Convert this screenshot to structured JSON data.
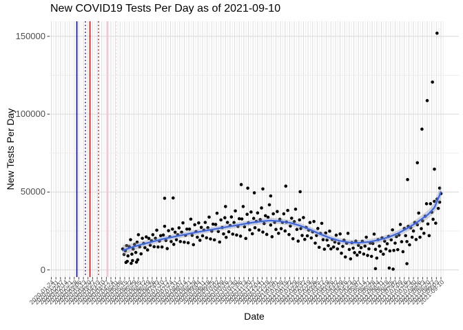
{
  "chart_data": {
    "type": "scatter",
    "title": "New COVID19 Tests Per Day as of 2021-09-10",
    "xlabel": "Date",
    "ylabel": "New Tests Per Day",
    "grid": true,
    "legend": false,
    "y_unit": 1000,
    "ylim": [
      -4500,
      161000
    ],
    "y_ticks": [
      0,
      50000,
      100000,
      150000
    ],
    "y_tick_labels": [
      "0",
      "50000",
      "100000",
      "150000"
    ],
    "y_minor_ticks": [
      25000,
      75000,
      125000
    ],
    "x_day_range": [
      0,
      595
    ],
    "x_tick_step_days": 7,
    "x_tick_angle": 45,
    "x_tick_labels": [
      "2020-01-24",
      "2020-01-31",
      "2020-02-07",
      "2020-02-14",
      "2020-02-21",
      "2020-02-28",
      "2020-03-06",
      "2020-03-13",
      "2020-03-20",
      "2020-03-27",
      "2020-04-03",
      "2020-04-10",
      "2020-04-17",
      "2020-04-24",
      "2020-05-01",
      "2020-05-08",
      "2020-05-15",
      "2020-05-22",
      "2020-05-29",
      "2020-06-05",
      "2020-06-12",
      "2020-06-19",
      "2020-06-26",
      "2020-07-03",
      "2020-07-10",
      "2020-07-17",
      "2020-07-24",
      "2020-07-31",
      "2020-08-07",
      "2020-08-14",
      "2020-08-21",
      "2020-08-28",
      "2020-09-04",
      "2020-09-11",
      "2020-09-18",
      "2020-09-25",
      "2020-10-02",
      "2020-10-09",
      "2020-10-16",
      "2020-10-23",
      "2020-10-30",
      "2020-11-06",
      "2020-11-13",
      "2020-11-20",
      "2020-11-27",
      "2020-12-04",
      "2020-12-11",
      "2020-12-18",
      "2020-12-25",
      "2021-01-01",
      "2021-01-08",
      "2021-01-15",
      "2021-01-22",
      "2021-01-29",
      "2021-02-05",
      "2021-02-12",
      "2021-02-19",
      "2021-02-26",
      "2021-03-05",
      "2021-03-12",
      "2021-03-19",
      "2021-03-26",
      "2021-04-02",
      "2021-04-09",
      "2021-04-16",
      "2021-04-23",
      "2021-04-30",
      "2021-05-07",
      "2021-05-14",
      "2021-05-21",
      "2021-05-28",
      "2021-06-04",
      "2021-06-11",
      "2021-06-18",
      "2021-06-25",
      "2021-07-02",
      "2021-07-09",
      "2021-07-16",
      "2021-07-23",
      "2021-07-30",
      "2021-08-06",
      "2021-08-13",
      "2021-08-20",
      "2021-08-27",
      "2021-09-03",
      "2021-09-10"
    ],
    "colors": {
      "point": "#000000",
      "smooth": "#3366FF",
      "ribbon": "rgba(153,153,153,0.4)",
      "grid_major": "#DCDCDC",
      "grid_minor": "#EDEDED",
      "axis_text": "#4D4D4D",
      "tick_mark": "#333333"
    },
    "vlines": [
      {
        "day": 39,
        "color": "#0000C8",
        "style": "solid"
      },
      {
        "day": 52,
        "color": "#2020E0",
        "style": "dotted"
      },
      {
        "day": 59,
        "color": "#E00000",
        "style": "solid"
      },
      {
        "day": 72,
        "color": "#B22222",
        "style": "dotted"
      },
      {
        "day": 86,
        "color": "#FFB3C1",
        "style": "solid"
      },
      {
        "day": 99,
        "color": "#FFD0DA",
        "style": "dotted"
      }
    ],
    "smooth": [
      [
        109,
        12.5,
        3.4
      ],
      [
        125,
        14.8,
        2.4
      ],
      [
        140,
        16.6,
        2.0
      ],
      [
        155,
        18.2,
        1.8
      ],
      [
        170,
        19.8,
        1.7
      ],
      [
        185,
        21.1,
        1.7
      ],
      [
        200,
        22.4,
        1.7
      ],
      [
        215,
        23.6,
        1.7
      ],
      [
        230,
        24.8,
        1.7
      ],
      [
        245,
        25.9,
        1.7
      ],
      [
        260,
        27.0,
        1.7
      ],
      [
        275,
        28.1,
        1.7
      ],
      [
        290,
        29.2,
        1.8
      ],
      [
        305,
        30.3,
        1.8
      ],
      [
        320,
        31.1,
        1.8
      ],
      [
        335,
        31.7,
        1.8
      ],
      [
        350,
        31.2,
        1.8
      ],
      [
        365,
        30.2,
        1.8
      ],
      [
        380,
        28.4,
        1.8
      ],
      [
        395,
        25.9,
        1.8
      ],
      [
        410,
        23.1,
        1.8
      ],
      [
        425,
        20.6,
        1.8
      ],
      [
        440,
        18.7,
        1.8
      ],
      [
        455,
        17.6,
        1.8
      ],
      [
        470,
        17.4,
        1.8
      ],
      [
        485,
        18.0,
        1.8
      ],
      [
        500,
        19.2,
        1.8
      ],
      [
        515,
        21.0,
        1.9
      ],
      [
        530,
        23.6,
        2.0
      ],
      [
        545,
        27.0,
        2.1
      ],
      [
        560,
        31.0,
        2.3
      ],
      [
        575,
        35.5,
        2.7
      ],
      [
        585,
        40.0,
        3.3
      ],
      [
        595,
        50.0,
        4.8
      ]
    ],
    "points": [
      [
        109,
        13.5
      ],
      [
        111,
        9.9
      ],
      [
        113,
        12.3
      ],
      [
        115,
        15.6
      ],
      [
        117,
        9.0
      ],
      [
        119,
        14.9
      ],
      [
        121,
        19.4
      ],
      [
        123,
        10.1
      ],
      [
        125,
        13.4
      ],
      [
        127,
        16.4
      ],
      [
        129,
        11.2
      ],
      [
        131,
        17.8
      ],
      [
        133,
        22.6
      ],
      [
        135,
        14.8
      ],
      [
        137,
        10.3
      ],
      [
        139,
        20.3
      ],
      [
        141,
        17.0
      ],
      [
        143,
        14.3
      ],
      [
        145,
        21.2
      ],
      [
        147,
        12.8
      ],
      [
        114,
        4.8
      ],
      [
        116,
        5.5
      ],
      [
        122,
        4.2
      ],
      [
        124,
        6.0
      ],
      [
        130,
        5.0
      ],
      [
        132,
        6.5
      ],
      [
        149,
        20.2
      ],
      [
        151,
        15.9
      ],
      [
        153,
        18.8
      ],
      [
        155,
        22.6
      ],
      [
        157,
        14.9
      ],
      [
        159,
        20.3
      ],
      [
        161,
        25.5
      ],
      [
        163,
        14.7
      ],
      [
        165,
        18.5
      ],
      [
        167,
        22.0
      ],
      [
        169,
        14.7
      ],
      [
        171,
        22.4
      ],
      [
        173,
        28.0
      ],
      [
        175,
        18.9
      ],
      [
        177,
        13.7
      ],
      [
        179,
        25.2
      ],
      [
        181,
        21.3
      ],
      [
        183,
        18.2
      ],
      [
        185,
        26.2
      ],
      [
        187,
        16.4
      ],
      [
        173,
        46.0
      ],
      [
        186,
        46.2
      ],
      [
        189,
        24.2
      ],
      [
        191,
        19.4
      ],
      [
        193,
        22.6
      ],
      [
        195,
        27.0
      ],
      [
        197,
        18.2
      ],
      [
        199,
        24.2
      ],
      [
        201,
        30.2
      ],
      [
        203,
        17.8
      ],
      [
        205,
        22.2
      ],
      [
        207,
        26.2
      ],
      [
        209,
        17.4
      ],
      [
        211,
        26.2
      ],
      [
        213,
        32.6
      ],
      [
        215,
        22.2
      ],
      [
        217,
        16.2
      ],
      [
        219,
        29.0
      ],
      [
        221,
        24.6
      ],
      [
        223,
        21.0
      ],
      [
        225,
        30.2
      ],
      [
        227,
        19.0
      ],
      [
        229,
        27.3
      ],
      [
        231,
        21.9
      ],
      [
        233,
        25.5
      ],
      [
        235,
        30.5
      ],
      [
        237,
        20.6
      ],
      [
        239,
        27.1
      ],
      [
        241,
        33.9
      ],
      [
        243,
        19.9
      ],
      [
        245,
        24.9
      ],
      [
        247,
        29.4
      ],
      [
        249,
        19.3
      ],
      [
        251,
        29.2
      ],
      [
        253,
        36.4
      ],
      [
        255,
        24.7
      ],
      [
        257,
        17.9
      ],
      [
        259,
        32.1
      ],
      [
        261,
        27.2
      ],
      [
        263,
        23.1
      ],
      [
        265,
        33.5
      ],
      [
        267,
        20.9
      ],
      [
        266,
        40.7
      ],
      [
        269,
        30.5
      ],
      [
        271,
        24.5
      ],
      [
        273,
        28.5
      ],
      [
        275,
        34.0
      ],
      [
        277,
        23.0
      ],
      [
        279,
        30.4
      ],
      [
        281,
        37.9
      ],
      [
        283,
        22.4
      ],
      [
        285,
        27.9
      ],
      [
        287,
        32.9
      ],
      [
        289,
        21.7
      ],
      [
        291,
        32.7
      ],
      [
        293,
        40.7
      ],
      [
        295,
        27.7
      ],
      [
        297,
        20.2
      ],
      [
        299,
        35.7
      ],
      [
        301,
        30.2
      ],
      [
        303,
        25.7
      ],
      [
        305,
        37.2
      ],
      [
        307,
        23.2
      ],
      [
        290,
        54.8
      ],
      [
        300,
        52.5
      ],
      [
        309,
        33.1
      ],
      [
        311,
        27.1
      ],
      [
        313,
        31.1
      ],
      [
        315,
        36.6
      ],
      [
        317,
        25.6
      ],
      [
        319,
        32.3
      ],
      [
        321,
        39.8
      ],
      [
        323,
        24.3
      ],
      [
        325,
        29.8
      ],
      [
        327,
        34.8
      ],
      [
        329,
        22.8
      ],
      [
        331,
        33.8
      ],
      [
        333,
        41.8
      ],
      [
        335,
        28.8
      ],
      [
        337,
        21.3
      ],
      [
        339,
        36.0
      ],
      [
        341,
        30.5
      ],
      [
        343,
        26.0
      ],
      [
        345,
        37.5
      ],
      [
        347,
        23.5
      ],
      [
        310,
        49.5
      ],
      [
        323,
        52.0
      ],
      [
        335,
        47.5
      ],
      [
        349,
        32.5
      ],
      [
        351,
        26.5
      ],
      [
        353,
        30.5
      ],
      [
        355,
        36.0
      ],
      [
        357,
        25.0
      ],
      [
        359,
        30.7
      ],
      [
        361,
        38.2
      ],
      [
        363,
        22.7
      ],
      [
        365,
        28.2
      ],
      [
        367,
        33.2
      ],
      [
        369,
        20.0
      ],
      [
        371,
        31.0
      ],
      [
        373,
        39.0
      ],
      [
        375,
        26.0
      ],
      [
        377,
        18.5
      ],
      [
        379,
        32.1
      ],
      [
        381,
        26.6
      ],
      [
        383,
        22.1
      ],
      [
        385,
        33.6
      ],
      [
        387,
        19.6
      ],
      [
        358,
        53.8
      ],
      [
        380,
        50.2
      ],
      [
        389,
        27.3
      ],
      [
        391,
        21.9
      ],
      [
        393,
        25.5
      ],
      [
        395,
        30.4
      ],
      [
        397,
        20.5
      ],
      [
        399,
        24.4
      ],
      [
        401,
        31.1
      ],
      [
        403,
        17.2
      ],
      [
        405,
        22.1
      ],
      [
        407,
        26.6
      ],
      [
        409,
        14.5
      ],
      [
        411,
        23.4
      ],
      [
        413,
        29.9
      ],
      [
        415,
        19.4
      ],
      [
        417,
        13.3
      ],
      [
        419,
        23.7
      ],
      [
        421,
        19.2
      ],
      [
        423,
        15.6
      ],
      [
        425,
        24.9
      ],
      [
        427,
        13.5
      ],
      [
        429,
        19.5
      ],
      [
        431,
        14.7
      ],
      [
        433,
        17.9
      ],
      [
        435,
        22.3
      ],
      [
        437,
        13.5
      ],
      [
        439,
        17.1
      ],
      [
        441,
        23.1
      ],
      [
        443,
        10.7
      ],
      [
        445,
        15.1
      ],
      [
        447,
        19.1
      ],
      [
        449,
        8.3
      ],
      [
        451,
        17.1
      ],
      [
        453,
        23.5
      ],
      [
        455,
        13.1
      ],
      [
        457,
        7.1
      ],
      [
        459,
        17.5
      ],
      [
        461,
        14.0
      ],
      [
        463,
        11.1
      ],
      [
        465,
        18.5
      ],
      [
        467,
        9.5
      ],
      [
        469,
        15.8
      ],
      [
        471,
        11.3
      ],
      [
        473,
        14.3
      ],
      [
        475,
        18.4
      ],
      [
        477,
        10.2
      ],
      [
        479,
        15.3
      ],
      [
        481,
        21.0
      ],
      [
        483,
        9.3
      ],
      [
        485,
        13.5
      ],
      [
        487,
        17.2
      ],
      [
        489,
        8.7
      ],
      [
        491,
        17.0
      ],
      [
        493,
        23.0
      ],
      [
        495,
        13.2
      ],
      [
        497,
        7.6
      ],
      [
        499,
        19.4
      ],
      [
        501,
        15.3
      ],
      [
        503,
        11.9
      ],
      [
        505,
        20.6
      ],
      [
        507,
        10.1
      ],
      [
        495,
        0.8
      ],
      [
        509,
        18.5
      ],
      [
        511,
        13.4
      ],
      [
        513,
        16.8
      ],
      [
        515,
        21.5
      ],
      [
        517,
        12.2
      ],
      [
        519,
        19.3
      ],
      [
        521,
        25.7
      ],
      [
        523,
        12.5
      ],
      [
        525,
        17.2
      ],
      [
        527,
        21.4
      ],
      [
        529,
        13.0
      ],
      [
        531,
        22.4
      ],
      [
        533,
        29.2
      ],
      [
        535,
        18.1
      ],
      [
        537,
        11.7
      ],
      [
        539,
        26.7
      ],
      [
        541,
        22.0
      ],
      [
        543,
        18.2
      ],
      [
        545,
        28.0
      ],
      [
        547,
        16.1
      ],
      [
        516,
        1.2
      ],
      [
        522,
        0.5
      ],
      [
        543,
        4.0
      ],
      [
        544,
        58.0
      ],
      [
        549,
        27.0
      ],
      [
        551,
        21.0
      ],
      [
        553,
        25.0
      ],
      [
        555,
        30.5
      ],
      [
        557,
        19.5
      ],
      [
        559,
        29.0
      ],
      [
        561,
        36.5
      ],
      [
        563,
        21.0
      ],
      [
        565,
        26.5
      ],
      [
        567,
        31.5
      ],
      [
        569,
        23.5
      ],
      [
        571,
        34.5
      ],
      [
        573,
        42.5
      ],
      [
        575,
        29.5
      ],
      [
        577,
        22.0
      ],
      [
        579,
        42.5
      ],
      [
        581,
        37.0
      ],
      [
        583,
        32.5
      ],
      [
        585,
        44.0
      ],
      [
        587,
        30.0
      ],
      [
        589,
        45.5
      ],
      [
        591,
        39.5
      ],
      [
        593,
        43.5
      ],
      [
        595,
        49.0
      ],
      [
        559,
        68.8
      ],
      [
        566,
        90.4
      ],
      [
        574,
        108.7
      ],
      [
        582,
        120.6
      ],
      [
        585,
        64.7
      ],
      [
        589,
        152.0
      ],
      [
        593,
        52.5
      ]
    ]
  }
}
